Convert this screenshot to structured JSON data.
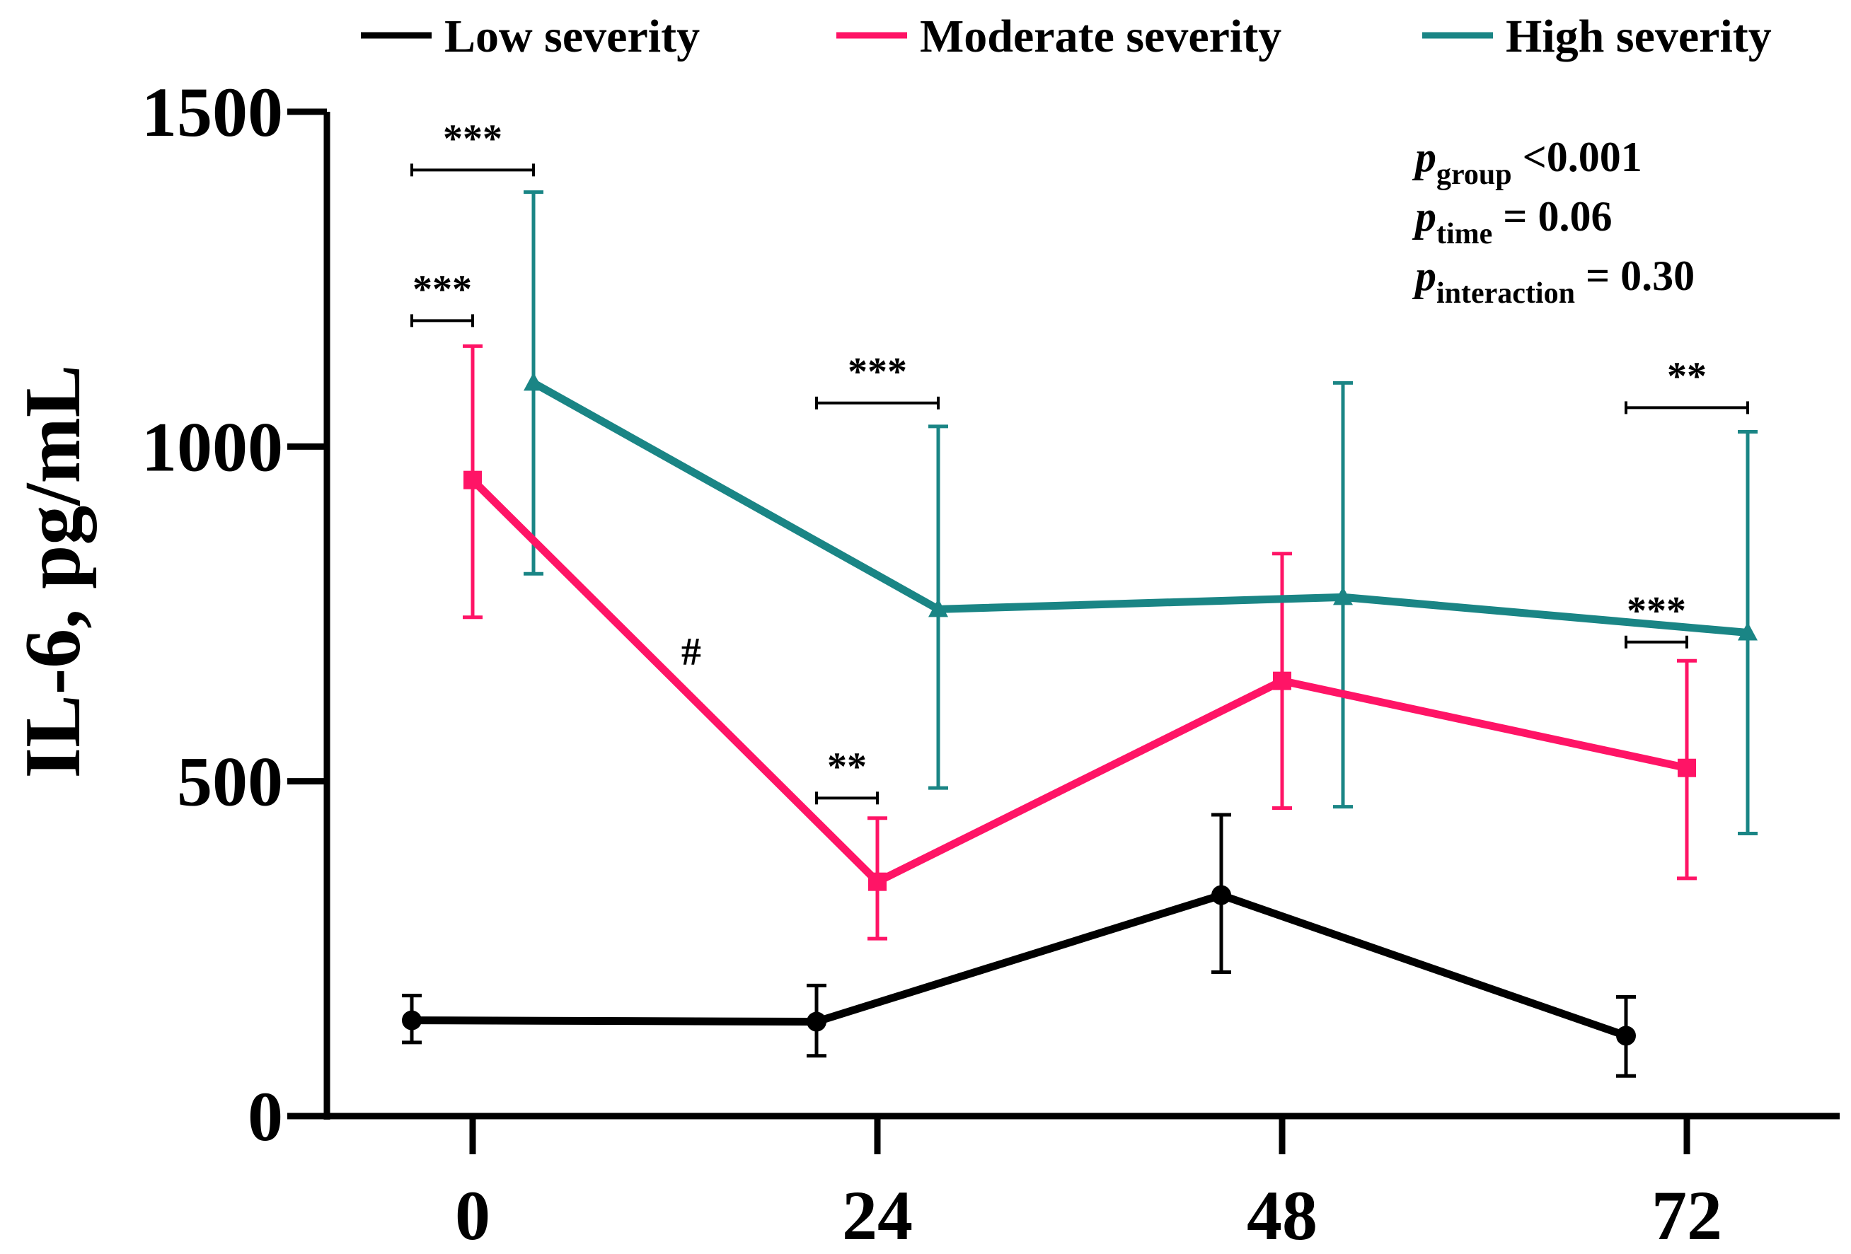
{
  "chart_data": {
    "type": "line",
    "title": "",
    "xlabel": "",
    "ylabel": "IL-6, pg/mL",
    "ylim": [
      0,
      1500
    ],
    "yticks": [
      0,
      500,
      1000,
      1500
    ],
    "categories": [
      "0",
      "24",
      "48",
      "72"
    ],
    "legend_position": "top",
    "grid": false,
    "series": [
      {
        "name": "Low severity",
        "color": "#000000",
        "marker": "circle",
        "values": [
          143,
          141,
          330,
          120
        ],
        "err_low": [
          110,
          90,
          215,
          60
        ],
        "err_high": [
          180,
          195,
          450,
          178
        ]
      },
      {
        "name": "Moderate severity",
        "color": "#ff1466",
        "marker": "square",
        "values": [
          950,
          350,
          650,
          520
        ],
        "err_low": [
          745,
          265,
          460,
          355
        ],
        "err_high": [
          1150,
          445,
          840,
          680
        ]
      },
      {
        "name": "High severity",
        "color": "#1a8585",
        "marker": "triangle",
        "values": [
          1095,
          757,
          775,
          722
        ],
        "err_low": [
          810,
          490,
          462,
          422
        ],
        "err_high": [
          1380,
          1030,
          1095,
          1022
        ]
      }
    ],
    "significance": [
      {
        "label": "***",
        "x_from": 0,
        "x_to": 0,
        "from_series": 0,
        "to_series": 2,
        "y": 1413
      },
      {
        "label": "***",
        "x_from": 0,
        "x_to": 0,
        "from_series": 0,
        "to_series": 1,
        "y": 1188
      },
      {
        "label": "***",
        "x_from": 1,
        "x_to": 1,
        "from_series": 0,
        "to_series": 2,
        "y": 1065
      },
      {
        "label": "**",
        "x_from": 1,
        "x_to": 1,
        "from_series": 0,
        "to_series": 1,
        "y": 475
      },
      {
        "label": "**",
        "x_from": 3,
        "x_to": 3,
        "from_series": 0,
        "to_series": 2,
        "y": 1058
      },
      {
        "label": "***",
        "x_from": 3,
        "x_to": 3,
        "from_series": 0,
        "to_series": 1,
        "y": 708
      }
    ],
    "annotations": [
      {
        "label": "#",
        "x": 0.54,
        "y": 695
      }
    ],
    "stats": [
      {
        "p": "p",
        "sub": "group",
        "text": " <0.001"
      },
      {
        "p": "p",
        "sub": "time",
        "text": " = 0.06"
      },
      {
        "p": "p",
        "sub": "interaction",
        "text": " = 0.30"
      }
    ]
  }
}
